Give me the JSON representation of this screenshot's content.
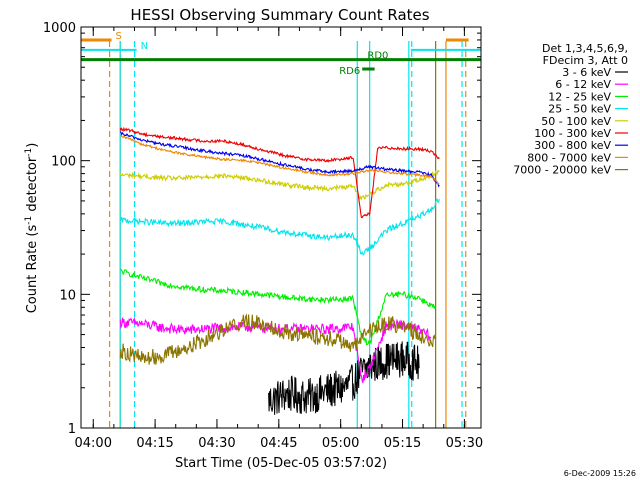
{
  "chart_data": {
    "type": "line",
    "title": "HESSI Observing Summary Count Rates",
    "xlabel": "Start Time (05-Dec-05 03:57:02)",
    "ylabel_main": "Count Rate (s",
    "ylabel_sup1": "-1",
    "ylabel_mid": " detector",
    "ylabel_sup2": "-1",
    "ylabel_end": ")",
    "x_unit": "minutes since 03:57:02",
    "xlim": [
      0,
      97
    ],
    "ylim": [
      1,
      1000
    ],
    "yscale": "log",
    "x_ticks": [
      {
        "label": "04:00",
        "value": 2.97
      },
      {
        "label": "04:15",
        "value": 17.97
      },
      {
        "label": "04:30",
        "value": 32.97
      },
      {
        "label": "04:45",
        "value": 47.97
      },
      {
        "label": "05:00",
        "value": 62.97
      },
      {
        "label": "05:15",
        "value": 77.97
      },
      {
        "label": "05:30",
        "value": 92.97
      }
    ],
    "y_ticks": [
      {
        "label": "1",
        "value": 1
      },
      {
        "label": "10",
        "value": 10
      },
      {
        "label": "100",
        "value": 100
      },
      {
        "label": "1000",
        "value": 1000
      }
    ],
    "legend_header": [
      "Det 1,3,4,5,6,9,",
      "FDecim 3, Att 0"
    ],
    "series": [
      {
        "name": "3 - 6 keV",
        "color": "#000000",
        "x": [
          45.5,
          50,
          55,
          60,
          64,
          66,
          68,
          70,
          74,
          78,
          82
        ],
        "y": [
          1.6,
          1.8,
          1.7,
          1.9,
          2.0,
          2.2,
          2.6,
          2.9,
          3.2,
          3.3,
          3.0
        ]
      },
      {
        "name": "6 - 12 keV",
        "color": "#ff00ff",
        "x": [
          9.5,
          15,
          20,
          25,
          30,
          40,
          50,
          60,
          66,
          68,
          70,
          74,
          78,
          82,
          85
        ],
        "y": [
          6.2,
          6.0,
          5.6,
          5.4,
          5.5,
          5.7,
          5.5,
          5.5,
          5.7,
          2.3,
          2.8,
          5.8,
          5.9,
          5.4,
          4.8
        ]
      },
      {
        "name": "12 - 25 keV",
        "color": "#00ee00",
        "x": [
          9.5,
          15,
          20,
          25,
          30,
          35,
          40,
          45,
          50,
          55,
          60,
          66,
          68,
          70,
          74,
          78,
          82,
          86
        ],
        "y": [
          15,
          13.2,
          12.0,
          11.3,
          10.8,
          10.6,
          10.3,
          9.9,
          9.5,
          9.2,
          9.1,
          9.3,
          4.8,
          4.2,
          9.8,
          10,
          9.4,
          7.9
        ]
      },
      {
        "name": "25 - 50 keV",
        "color": "#00e5ee",
        "x": [
          9.5,
          15,
          20,
          25,
          30,
          35,
          40,
          45,
          50,
          55,
          60,
          66,
          68,
          70,
          74,
          78,
          82,
          85,
          87
        ],
        "y": [
          36,
          35,
          34,
          34,
          35,
          35,
          33,
          31,
          29,
          27.5,
          26.5,
          28,
          20,
          22,
          30,
          34,
          38,
          44,
          52
        ]
      },
      {
        "name": "50 - 100 keV",
        "color": "#cdcd00",
        "x": [
          9.5,
          12,
          15,
          20,
          25,
          30,
          35,
          40,
          45,
          50,
          55,
          60,
          66,
          68,
          70,
          74,
          78,
          82,
          85,
          87
        ],
        "y": [
          78,
          78,
          76,
          74,
          74,
          76,
          77,
          74,
          70,
          66,
          63,
          62,
          64,
          52,
          56,
          66,
          67,
          72,
          78,
          84
        ]
      },
      {
        "name": "100 - 300 keV",
        "color": "#ee0000",
        "x": [
          9.5,
          12,
          15,
          20,
          25,
          30,
          35,
          40,
          45,
          50,
          55,
          60,
          65,
          66,
          68,
          70,
          72,
          74,
          78,
          82,
          85,
          87
        ],
        "y": [
          172,
          168,
          158,
          150,
          145,
          140,
          140,
          130,
          118,
          108,
          102,
          100,
          105,
          105,
          38,
          40,
          125,
          125,
          123,
          122,
          118,
          102
        ]
      },
      {
        "name": "300 - 800 keV",
        "color": "#0000ee",
        "x": [
          9.5,
          12,
          15,
          20,
          25,
          30,
          35,
          40,
          45,
          50,
          55,
          60,
          66,
          70,
          74,
          78,
          82,
          85,
          87
        ],
        "y": [
          160,
          152,
          142,
          132,
          125,
          118,
          113,
          108,
          100,
          92,
          86,
          82,
          84,
          90,
          86,
          84,
          82,
          78,
          64
        ]
      },
      {
        "name": "800 - 7000 keV",
        "color": "#ee8800",
        "x": [
          9.5,
          12,
          15,
          20,
          25,
          30,
          35,
          40,
          45,
          50,
          55,
          60,
          66,
          70,
          74,
          78,
          82,
          85,
          87
        ],
        "y": [
          152,
          145,
          132,
          120,
          112,
          106,
          102,
          100,
          94,
          87,
          82,
          78,
          80,
          85,
          82,
          80,
          78,
          76,
          66
        ]
      },
      {
        "name": "7000 - 20000 keV",
        "color": "#8b7500",
        "x": [
          9.5,
          12,
          15,
          20,
          25,
          30,
          35,
          40,
          45,
          50,
          55,
          60,
          64,
          66,
          70,
          74,
          78,
          82,
          85,
          86
        ],
        "y": [
          3.8,
          3.6,
          3.3,
          3.5,
          3.9,
          4.6,
          5.6,
          6.3,
          5.9,
          5.2,
          4.9,
          4.7,
          4.4,
          4.0,
          5.4,
          6.1,
          5.8,
          5.0,
          4.4,
          4.4
        ]
      }
    ],
    "vlines": [
      {
        "x": 6.93,
        "color": "#ee8800",
        "dash": true
      },
      {
        "x": 9.5,
        "color": "#ee8800",
        "dash": false
      },
      {
        "x": 13.0,
        "color": "#00e5ee",
        "dash": true
      },
      {
        "x": 9.5,
        "color": "#00e5ee",
        "dash": false
      },
      {
        "x": 67.0,
        "color": "#00e5ee",
        "dash": false
      },
      {
        "x": 70.0,
        "color": "#00e5ee",
        "dash": false
      },
      {
        "x": 79.5,
        "color": "#00e5ee",
        "dash": false
      },
      {
        "x": 80.2,
        "color": "#00e5ee",
        "dash": true
      },
      {
        "x": 86.0,
        "color": "#8b7500",
        "dash": false
      },
      {
        "x": 88.5,
        "color": "#ee8800",
        "dash": false
      },
      {
        "x": 93.3,
        "color": "#ee8800",
        "dash": true
      },
      {
        "x": 92.4,
        "color": "#00e5ee",
        "dash": true
      }
    ],
    "bars": [
      {
        "label": "S",
        "color": "#ee8800",
        "x0": 0,
        "x1": 7.4,
        "y": 800,
        "lw": 3
      },
      {
        "label": "N",
        "color": "#00e5ee",
        "x0": 0,
        "x1": 13.5,
        "y": 675,
        "lw": 2
      },
      {
        "label": "",
        "color": "#00e5ee",
        "x0": 80.0,
        "x1": 97,
        "y": 675,
        "lw": 2
      },
      {
        "label": "",
        "color": "#ee8800",
        "x0": 88.5,
        "x1": 94.0,
        "y": 800,
        "lw": 3
      },
      {
        "label": "RD0",
        "color": "#007f00",
        "x0": 0,
        "x1": 97,
        "y": 570,
        "lw": 3
      },
      {
        "label": "RD6",
        "color": "#007f00",
        "x0": 68.2,
        "x1": 71.2,
        "y": 485,
        "lw": 3
      }
    ]
  },
  "footer": {
    "date_stamp": "6-Dec-2009 15:26"
  }
}
